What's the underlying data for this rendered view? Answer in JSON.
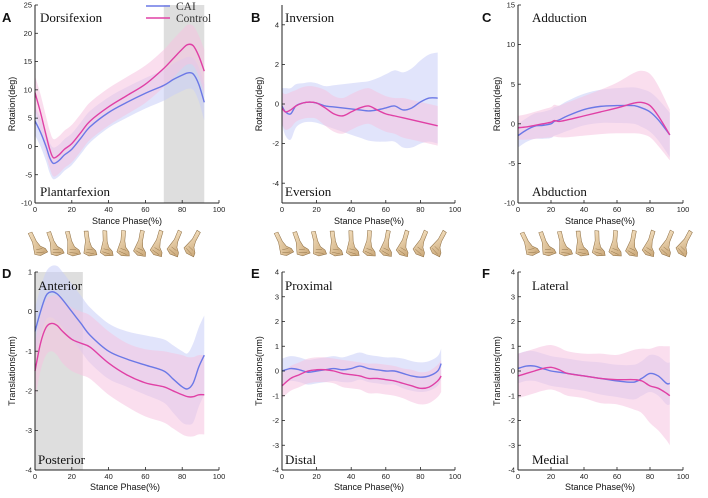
{
  "chart_data": [
    {
      "panel": "A",
      "type": "line",
      "xlabel": "Stance Phase(%)",
      "ylabel": "Rotation(deg)",
      "xlim": [
        0,
        100
      ],
      "ylim": [
        -10,
        25
      ],
      "xticks": [
        0,
        20,
        40,
        60,
        80,
        100
      ],
      "yticks": [
        -10,
        -5,
        0,
        5,
        10,
        15,
        20,
        25
      ],
      "annotation_top": "Dorsifexion",
      "annotation_bottom": "Plantarfexion",
      "shaded_x": [
        70,
        92
      ],
      "legend": [
        "CAI",
        "Control"
      ],
      "series": [
        {
          "name": "CAI",
          "color": "#6b78e6",
          "band": "#c9cdf7",
          "x": [
            0,
            3,
            6,
            8,
            10,
            13,
            16,
            20,
            25,
            30,
            40,
            50,
            60,
            70,
            75,
            80,
            83,
            86,
            89,
            92
          ],
          "values": [
            4.5,
            2.5,
            0,
            -2,
            -3,
            -2.5,
            -1.5,
            -0.5,
            1.5,
            3.5,
            6,
            7.8,
            9.4,
            10.8,
            11.8,
            12.6,
            13,
            12.8,
            11,
            7.8
          ],
          "sd": [
            2.5,
            2.5,
            2.6,
            2.7,
            2.8,
            2.8,
            2.8,
            2.8,
            2.8,
            2.8,
            2.7,
            2.7,
            2.7,
            2.7,
            2.8,
            2.8,
            2.8,
            2.8,
            3,
            3.2
          ]
        },
        {
          "name": "Control",
          "color": "#e040a5",
          "band": "#f6c3e0",
          "x": [
            0,
            3,
            6,
            8,
            10,
            13,
            16,
            20,
            25,
            30,
            40,
            50,
            60,
            70,
            75,
            80,
            83,
            86,
            89,
            92
          ],
          "values": [
            9.5,
            6,
            2,
            -0.5,
            -2,
            -1.5,
            -0.5,
            0.5,
            2.5,
            4.5,
            7,
            9,
            11,
            13.8,
            15.5,
            17.2,
            18,
            17.8,
            16,
            13.3
          ],
          "sd": [
            3,
            3.2,
            3.3,
            3.3,
            3.3,
            3.3,
            3.3,
            3.3,
            3.3,
            3.3,
            3.3,
            3.3,
            3.3,
            3.3,
            3.4,
            3.4,
            3.5,
            3.5,
            3.6,
            3.8
          ]
        }
      ]
    },
    {
      "panel": "B",
      "type": "line",
      "xlabel": "Stance Phase(%)",
      "ylabel": "Rotation(deg)",
      "xlim": [
        0,
        100
      ],
      "ylim": [
        -5,
        5
      ],
      "xticks": [
        0,
        20,
        40,
        60,
        80,
        100
      ],
      "yticks": [
        -4,
        -2,
        0,
        2,
        4
      ],
      "annotation_top": "Inversion",
      "annotation_bottom": "Eversion",
      "series": [
        {
          "name": "CAI",
          "color": "#6b78e6",
          "band": "#c9cdf7",
          "x": [
            0,
            2,
            5,
            8,
            12,
            16,
            20,
            25,
            30,
            35,
            40,
            45,
            50,
            55,
            60,
            65,
            70,
            75,
            80,
            85,
            90
          ],
          "values": [
            -0.1,
            -0.4,
            -0.5,
            -0.1,
            0.05,
            0.1,
            0.05,
            -0.1,
            -0.15,
            -0.2,
            -0.25,
            -0.3,
            -0.35,
            -0.3,
            -0.2,
            -0.1,
            -0.3,
            -0.2,
            0.1,
            0.3,
            0.3
          ],
          "sd": [
            0.9,
            1.2,
            1.3,
            1.1,
            1,
            1,
            1,
            1,
            1.1,
            1.2,
            1.3,
            1.4,
            1.5,
            1.6,
            1.7,
            1.8,
            1.9,
            2,
            2.1,
            2.2,
            2.3
          ]
        },
        {
          "name": "Control",
          "color": "#e040a5",
          "band": "#f6c3e0",
          "x": [
            0,
            2,
            5,
            8,
            12,
            16,
            20,
            25,
            30,
            35,
            40,
            45,
            50,
            55,
            60,
            65,
            70,
            75,
            80,
            85,
            90
          ],
          "values": [
            -0.2,
            -0.4,
            -0.3,
            -0.1,
            0.05,
            0.1,
            0.05,
            -0.2,
            -0.5,
            -0.6,
            -0.4,
            -0.2,
            -0.1,
            -0.3,
            -0.5,
            -0.6,
            -0.7,
            -0.8,
            -0.9,
            -1,
            -1.1
          ],
          "sd": [
            0.8,
            0.9,
            0.9,
            0.8,
            0.8,
            0.8,
            0.8,
            0.9,
            0.9,
            0.9,
            0.9,
            0.9,
            0.9,
            0.9,
            0.9,
            0.9,
            1,
            1,
            1,
            1,
            1
          ]
        }
      ]
    },
    {
      "panel": "C",
      "type": "line",
      "xlabel": "Stance Phase(%)",
      "ylabel": "Rotation(deg)",
      "xlim": [
        0,
        100
      ],
      "ylim": [
        -10,
        15
      ],
      "xticks": [
        0,
        20,
        40,
        60,
        80,
        100
      ],
      "yticks": [
        -10,
        -5,
        0,
        5,
        10,
        15
      ],
      "annotation_top": "Adduction",
      "annotation_bottom": "Abduction",
      "series": [
        {
          "name": "CAI",
          "color": "#6b78e6",
          "band": "#c9cdf7",
          "x": [
            0,
            5,
            10,
            15,
            20,
            22,
            25,
            30,
            40,
            50,
            60,
            70,
            75,
            80,
            85,
            92
          ],
          "values": [
            -1.5,
            -0.8,
            -0.3,
            -0.2,
            0,
            0.3,
            0.5,
            1,
            1.8,
            2.2,
            2.3,
            2.3,
            2,
            1.5,
            0.5,
            -1.4
          ],
          "sd": [
            1.5,
            1.5,
            1.6,
            1.7,
            1.8,
            1.8,
            1.8,
            1.9,
            2,
            2.1,
            2.2,
            2.3,
            2.4,
            2.5,
            2.6,
            2.8
          ]
        },
        {
          "name": "Control",
          "color": "#e040a5",
          "band": "#f6c3e0",
          "x": [
            0,
            5,
            10,
            15,
            20,
            22,
            25,
            30,
            40,
            50,
            60,
            70,
            75,
            80,
            85,
            92
          ],
          "values": [
            -0.5,
            -0.4,
            -0.2,
            0,
            0.2,
            0.4,
            0.3,
            0.5,
            1,
            1.5,
            2,
            2.6,
            2.7,
            2.3,
            1,
            -1.4
          ],
          "sd": [
            1.5,
            1.6,
            1.7,
            1.8,
            1.9,
            2,
            2,
            2.2,
            2.5,
            2.8,
            3.2,
            3.8,
            4,
            4,
            3.8,
            3.2
          ]
        }
      ]
    },
    {
      "panel": "D",
      "type": "line",
      "xlabel": "Stance Phase(%)",
      "ylabel": "Translations(mm)",
      "xlim": [
        0,
        100
      ],
      "ylim": [
        -4,
        1
      ],
      "xticks": [
        0,
        20,
        40,
        60,
        80,
        100
      ],
      "yticks": [
        -4,
        -3,
        -2,
        -1,
        0,
        1
      ],
      "annotation_top": "Anterior",
      "annotation_bottom": "Posterior",
      "shaded_x": [
        0,
        26
      ],
      "series": [
        {
          "name": "CAI",
          "color": "#6b78e6",
          "band": "#c9cdf7",
          "x": [
            0,
            3,
            6,
            9,
            12,
            15,
            20,
            25,
            30,
            40,
            50,
            60,
            70,
            75,
            80,
            83,
            86,
            89,
            92
          ],
          "values": [
            -0.5,
            0,
            0.4,
            0.5,
            0.45,
            0.3,
            0,
            -0.3,
            -0.6,
            -1,
            -1.2,
            -1.35,
            -1.5,
            -1.7,
            -1.9,
            -1.95,
            -1.8,
            -1.4,
            -1.1
          ],
          "sd": [
            0.6,
            0.6,
            0.6,
            0.65,
            0.7,
            0.7,
            0.7,
            0.7,
            0.7,
            0.7,
            0.7,
            0.75,
            0.8,
            0.85,
            0.9,
            0.9,
            1,
            1,
            1
          ]
        },
        {
          "name": "Control",
          "color": "#e040a5",
          "band": "#f6c3e0",
          "x": [
            0,
            3,
            6,
            9,
            12,
            15,
            20,
            25,
            30,
            40,
            50,
            60,
            70,
            75,
            80,
            83,
            86,
            89,
            92
          ],
          "values": [
            -1.5,
            -0.8,
            -0.4,
            -0.3,
            -0.35,
            -0.5,
            -0.7,
            -0.8,
            -0.9,
            -1.3,
            -1.6,
            -1.8,
            -1.9,
            -2,
            -2.1,
            -2.15,
            -2.15,
            -2.1,
            -2.1
          ],
          "sd": [
            0.7,
            0.7,
            0.7,
            0.7,
            0.75,
            0.8,
            0.8,
            0.8,
            0.8,
            0.8,
            0.8,
            0.85,
            0.9,
            0.95,
            1,
            1,
            1,
            1,
            1
          ]
        }
      ]
    },
    {
      "panel": "E",
      "type": "line",
      "xlabel": "Stance Phase(%)",
      "ylabel": "Translations(mm)",
      "xlim": [
        0,
        100
      ],
      "ylim": [
        -4,
        4
      ],
      "xticks": [
        0,
        20,
        40,
        60,
        80,
        100
      ],
      "yticks": [
        -4,
        -3,
        -2,
        -1,
        0,
        1,
        2,
        3,
        4
      ],
      "annotation_top": "Proximal",
      "annotation_bottom": "Distal",
      "series": [
        {
          "name": "CAI",
          "color": "#6b78e6",
          "band": "#c9cdf7",
          "x": [
            0,
            5,
            10,
            15,
            20,
            25,
            30,
            35,
            40,
            45,
            50,
            55,
            60,
            65,
            70,
            75,
            80,
            85,
            90,
            92
          ],
          "values": [
            0,
            0.1,
            0.05,
            -0.05,
            0,
            0.05,
            0.1,
            0.05,
            0.1,
            0.2,
            0.1,
            0.05,
            0,
            0,
            -0.1,
            -0.2,
            -0.25,
            -0.2,
            0,
            0.3
          ],
          "sd": [
            0.5,
            0.5,
            0.5,
            0.5,
            0.5,
            0.5,
            0.5,
            0.5,
            0.55,
            0.55,
            0.55,
            0.55,
            0.55,
            0.55,
            0.6,
            0.6,
            0.6,
            0.6,
            0.6,
            0.6
          ]
        },
        {
          "name": "Control",
          "color": "#e040a5",
          "band": "#f6c3e0",
          "x": [
            0,
            5,
            10,
            15,
            20,
            25,
            30,
            35,
            40,
            45,
            50,
            55,
            60,
            65,
            70,
            75,
            80,
            85,
            90,
            92
          ],
          "values": [
            -0.6,
            -0.3,
            -0.15,
            0,
            0.05,
            0.05,
            0,
            -0.1,
            -0.15,
            -0.2,
            -0.3,
            -0.3,
            -0.35,
            -0.4,
            -0.5,
            -0.6,
            -0.7,
            -0.65,
            -0.4,
            -0.2
          ],
          "sd": [
            0.5,
            0.5,
            0.5,
            0.5,
            0.5,
            0.5,
            0.5,
            0.55,
            0.55,
            0.55,
            0.6,
            0.6,
            0.6,
            0.6,
            0.6,
            0.65,
            0.65,
            0.65,
            0.65,
            0.65
          ]
        }
      ]
    },
    {
      "panel": "F",
      "type": "line",
      "xlabel": "Stance Phase(%)",
      "ylabel": "Translations(mm)",
      "xlim": [
        0,
        100
      ],
      "ylim": [
        -4,
        4
      ],
      "xticks": [
        0,
        20,
        40,
        60,
        80,
        100
      ],
      "yticks": [
        -4,
        -3,
        -2,
        -1,
        0,
        1,
        2,
        3,
        4
      ],
      "annotation_top": "Lateral",
      "annotation_bottom": "Medial",
      "series": [
        {
          "name": "CAI",
          "color": "#6b78e6",
          "band": "#c9cdf7",
          "x": [
            0,
            5,
            10,
            15,
            20,
            25,
            30,
            40,
            50,
            60,
            70,
            75,
            80,
            85,
            90,
            92
          ],
          "values": [
            0.1,
            0.2,
            0.2,
            0.1,
            0,
            -0.05,
            -0.1,
            -0.2,
            -0.3,
            -0.4,
            -0.45,
            -0.3,
            -0.1,
            -0.2,
            -0.5,
            -0.5
          ],
          "sd": [
            0.6,
            0.6,
            0.6,
            0.6,
            0.6,
            0.6,
            0.6,
            0.6,
            0.65,
            0.65,
            0.7,
            0.7,
            0.75,
            0.8,
            0.85,
            0.85
          ]
        },
        {
          "name": "Control",
          "color": "#e040a5",
          "band": "#f6c3e0",
          "x": [
            0,
            5,
            10,
            15,
            20,
            25,
            30,
            40,
            50,
            60,
            70,
            75,
            80,
            85,
            90,
            92
          ],
          "values": [
            -0.2,
            -0.1,
            0,
            0.1,
            0.15,
            0.05,
            -0.1,
            -0.2,
            -0.3,
            -0.35,
            -0.35,
            -0.4,
            -0.6,
            -0.7,
            -0.9,
            -1
          ],
          "sd": [
            0.9,
            0.9,
            0.9,
            0.9,
            0.9,
            0.9,
            0.9,
            0.9,
            1,
            1,
            1.2,
            1.3,
            1.5,
            1.7,
            1.9,
            2
          ]
        }
      ]
    }
  ]
}
